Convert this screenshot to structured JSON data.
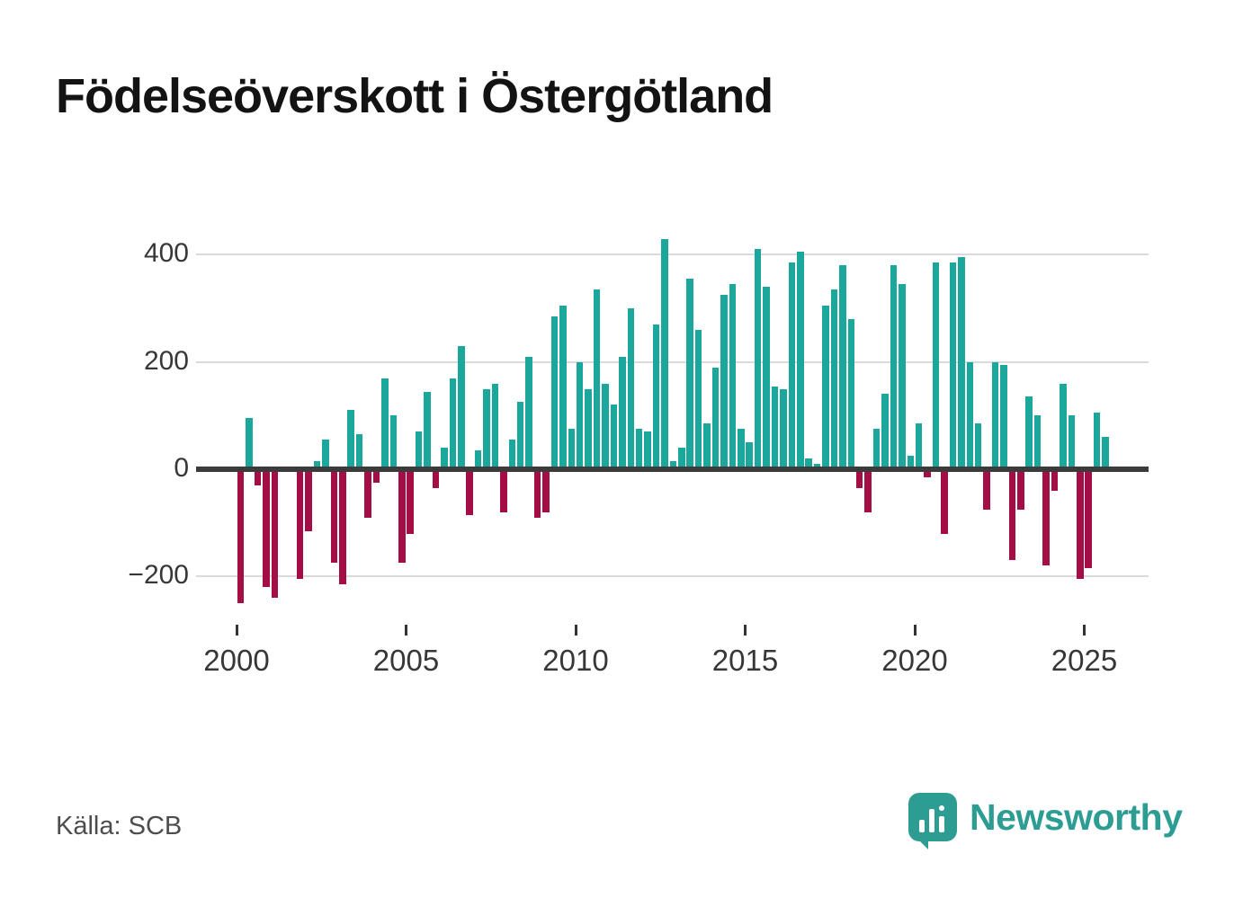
{
  "title": "Födelseöverskott i Östergötland",
  "source": "Källa: SCB",
  "brand": {
    "name": "Newsworthy"
  },
  "colors": {
    "positive": "#1ba79c",
    "negative": "#a50d47",
    "grid": "#dadada",
    "zero_axis": "#3b3b3b",
    "title": "#131313",
    "tick_label": "#373737",
    "source": "#4d4d4d",
    "brand": "#2d9d94"
  },
  "chart_data": {
    "type": "bar",
    "title": "Födelseöverskott i Östergötland",
    "xlabel": "",
    "ylabel": "",
    "x_unit": "quarter",
    "start_year": 2000,
    "start_quarter": 1,
    "end_year": 2025,
    "end_quarter": 3,
    "ylim": [
      -260,
      460
    ],
    "grid": true,
    "yticks": [
      {
        "value": 400,
        "label": "400"
      },
      {
        "value": 200,
        "label": "200"
      },
      {
        "value": 0,
        "label": "0"
      },
      {
        "value": -200,
        "label": "−200"
      }
    ],
    "xticks": [
      {
        "year": 2000,
        "label": "2000"
      },
      {
        "year": 2005,
        "label": "2005"
      },
      {
        "year": 2010,
        "label": "2010"
      },
      {
        "year": 2015,
        "label": "2015"
      },
      {
        "year": 2020,
        "label": "2020"
      },
      {
        "year": 2025,
        "label": "2025"
      }
    ],
    "values": [
      -250,
      95,
      -30,
      -220,
      -240,
      5,
      -5,
      -205,
      -115,
      15,
      55,
      -175,
      -215,
      110,
      65,
      -90,
      -25,
      170,
      100,
      -175,
      -120,
      70,
      145,
      -35,
      40,
      170,
      230,
      -85,
      35,
      150,
      160,
      -80,
      55,
      125,
      210,
      -90,
      -80,
      285,
      305,
      75,
      200,
      150,
      335,
      160,
      120,
      210,
      300,
      75,
      70,
      270,
      430,
      15,
      40,
      355,
      260,
      85,
      190,
      325,
      345,
      75,
      50,
      410,
      340,
      155,
      150,
      385,
      405,
      20,
      10,
      305,
      335,
      380,
      280,
      -35,
      -80,
      75,
      140,
      380,
      345,
      25,
      85,
      -15,
      385,
      -120,
      385,
      395,
      200,
      85,
      -75,
      200,
      195,
      -170,
      -75,
      135,
      100,
      -180,
      -40,
      160,
      100,
      -205,
      -185,
      105,
      60
    ]
  }
}
